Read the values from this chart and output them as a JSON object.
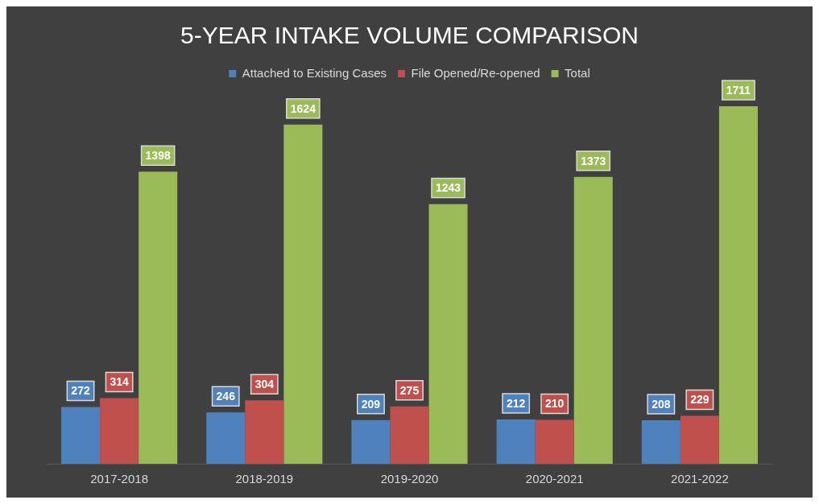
{
  "chart_data": {
    "type": "bar",
    "title": "5-YEAR INTAKE VOLUME COMPARISON",
    "categories": [
      "2017-2018",
      "2018-2019",
      "2019-2020",
      "2020-2021",
      "2021-2022"
    ],
    "series": [
      {
        "name": "Attached to Existing Cases",
        "color": "#4f81bd",
        "values": [
          272,
          246,
          209,
          212,
          208
        ]
      },
      {
        "name": "File Opened/Re-opened",
        "color": "#c0504d",
        "values": [
          314,
          304,
          275,
          210,
          229
        ]
      },
      {
        "name": "Total",
        "color": "#9bbb59",
        "values": [
          1398,
          1624,
          1243,
          1373,
          1711
        ]
      }
    ],
    "data_labels": true,
    "legend": "top"
  }
}
